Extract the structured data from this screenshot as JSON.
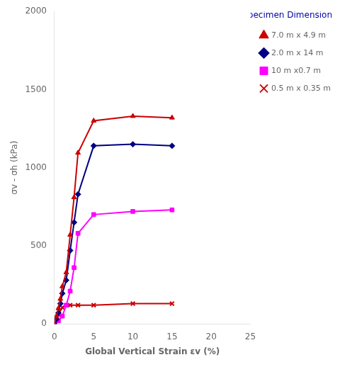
{
  "chart_data": {
    "type": "line",
    "xlabel": "Global Vertical Strain εv (%)",
    "ylabel": "σv - σh (kPa)",
    "xlim": [
      0,
      25
    ],
    "ylim": [
      0,
      2000
    ],
    "xticks": [
      0,
      5,
      10,
      15,
      20,
      25
    ],
    "yticks": [
      0,
      500,
      1000,
      1500,
      2000
    ],
    "grid": false,
    "legend": "right",
    "legend_title": "Specimen Dimensions:",
    "series": [
      {
        "name": "7.0 m x 4.9 m",
        "color": "#CC0000",
        "marker": "triangle",
        "x": [
          0,
          0.25,
          0.5,
          0.75,
          1.0,
          1.5,
          2.0,
          2.5,
          3.0,
          5.0,
          10.0,
          15.0
        ],
        "values": [
          0,
          50,
          100,
          160,
          240,
          330,
          570,
          810,
          1095,
          1300,
          1330,
          1320
        ]
      },
      {
        "name": "2.0 m x 14 m",
        "color": "#000080",
        "marker": "diamond",
        "x": [
          0,
          0.25,
          0.5,
          0.75,
          1.0,
          1.5,
          2.0,
          2.5,
          3.0,
          5.0,
          10.0,
          15.0
        ],
        "values": [
          0,
          30,
          70,
          130,
          195,
          280,
          470,
          650,
          830,
          1140,
          1150,
          1140
        ]
      },
      {
        "name": "10 m x0.7 m",
        "color": "#FF00FF",
        "marker": "square",
        "x": [
          0,
          0.5,
          1.0,
          1.5,
          2.0,
          2.5,
          3.0,
          5.0,
          10.0,
          15.0
        ],
        "values": [
          0,
          20,
          50,
          120,
          210,
          360,
          580,
          700,
          720,
          730
        ]
      },
      {
        "name": "0.5 m x 0.35 m",
        "color": "#CC0000",
        "marker": "x",
        "x": [
          0,
          0.5,
          1.0,
          2.0,
          3.0,
          5.0,
          10.0,
          15.0
        ],
        "values": [
          0,
          60,
          105,
          120,
          120,
          120,
          130,
          130
        ]
      }
    ]
  }
}
